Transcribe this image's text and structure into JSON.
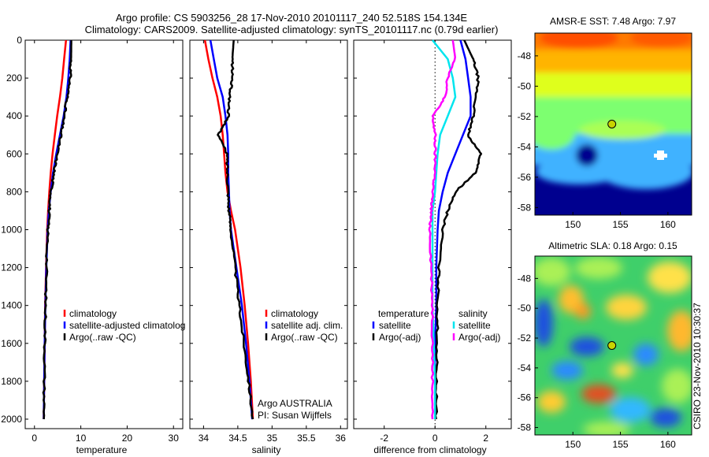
{
  "header": {
    "line1": "Argo profile: CS 5903256_28 17-Nov-2010 20101117_240 52.518S 154.134E",
    "line2": "Climatology: CARS2009. Satellite-adjusted climatology: synTS_20101117.nc (0.79d earlier)"
  },
  "credit": {
    "agency": "Argo AUSTRALIA",
    "pi": "PI: Susan Wijffels",
    "stamp": "CSIRO 23-Nov-2010 10:30:37"
  },
  "colors": {
    "climatology": "#ff0000",
    "satellite": "#0000ff",
    "argo": "#000000",
    "sat_diff": "#00e5ee",
    "argo_adj_diff": "#ff00ff"
  },
  "chart_data": [
    {
      "type": "line",
      "title": "",
      "xlabel": "temperature",
      "ylabel": "",
      "xlim": [
        -2,
        32
      ],
      "ylim": [
        2050,
        0
      ],
      "xticks": [
        0,
        10,
        20,
        30
      ],
      "yticks": [
        0,
        200,
        400,
        600,
        800,
        1000,
        1200,
        1400,
        1600,
        1800,
        2000
      ],
      "legend": {
        "location": "lower-right",
        "entries": [
          "climatology",
          "satellite-adjusted climatolog",
          "Argo(..raw -QC)"
        ]
      },
      "series": [
        {
          "name": "climatology",
          "color": "#ff0000",
          "depth": [
            0,
            100,
            200,
            300,
            400,
            500,
            600,
            700,
            800,
            900,
            1000,
            1200,
            1400,
            1600,
            1800,
            2000
          ],
          "values": [
            6.8,
            6.4,
            6.0,
            5.5,
            4.9,
            4.4,
            3.9,
            3.5,
            3.2,
            2.95,
            2.75,
            2.5,
            2.3,
            2.2,
            2.1,
            2.0
          ]
        },
        {
          "name": "satellite-adjusted climatolog",
          "color": "#0000ff",
          "depth": [
            0,
            100,
            200,
            300,
            400,
            500,
            600,
            700,
            800,
            900,
            1000,
            1200,
            1400,
            1600,
            1800,
            2000
          ],
          "values": [
            7.8,
            7.6,
            7.3,
            6.9,
            6.3,
            5.5,
            4.7,
            4.0,
            3.5,
            3.1,
            2.85,
            2.55,
            2.35,
            2.2,
            2.1,
            2.0
          ]
        },
        {
          "name": "Argo(..raw -QC)",
          "color": "#000000",
          "depth": [
            0,
            100,
            200,
            300,
            400,
            500,
            600,
            700,
            800,
            900,
            1000,
            1200,
            1400,
            1600,
            1800,
            2000
          ],
          "values": [
            7.95,
            7.9,
            7.7,
            7.1,
            6.4,
            5.7,
            4.9,
            4.2,
            3.6,
            3.2,
            2.9,
            2.6,
            2.4,
            2.25,
            2.12,
            2.02
          ]
        }
      ]
    },
    {
      "type": "line",
      "title": "",
      "xlabel": "salinity",
      "ylabel": "",
      "xlim": [
        33.8,
        36.1
      ],
      "ylim": [
        2050,
        0
      ],
      "xticks": [
        34,
        34.5,
        35,
        35.5,
        36
      ],
      "yticks": [
        0,
        200,
        400,
        600,
        800,
        1000,
        1200,
        1400,
        1600,
        1800,
        2000
      ],
      "legend": {
        "location": "lower-right",
        "entries": [
          "climatology",
          "satellite adj. clim.",
          "Argo(..raw -QC)"
        ]
      },
      "series": [
        {
          "name": "climatology",
          "color": "#ff0000",
          "depth": [
            0,
            100,
            200,
            300,
            400,
            500,
            600,
            700,
            800,
            900,
            1000,
            1200,
            1400,
            1600,
            1800,
            2000
          ],
          "values": [
            34.02,
            34.07,
            34.13,
            34.2,
            34.25,
            34.28,
            34.3,
            34.32,
            34.35,
            34.4,
            34.46,
            34.54,
            34.6,
            34.65,
            34.69,
            34.72
          ]
        },
        {
          "name": "satellite adj. clim.",
          "color": "#0000ff",
          "depth": [
            0,
            100,
            200,
            300,
            400,
            500,
            600,
            700,
            800,
            900,
            1000,
            1200,
            1400,
            1600,
            1800,
            2000
          ],
          "values": [
            34.1,
            34.15,
            34.2,
            34.28,
            34.32,
            34.35,
            34.36,
            34.36,
            34.37,
            34.38,
            34.4,
            34.48,
            34.56,
            34.62,
            34.67,
            34.71
          ]
        },
        {
          "name": "Argo(..raw -QC)",
          "color": "#000000",
          "depth": [
            0,
            100,
            200,
            300,
            400,
            500,
            600,
            700,
            800,
            900,
            1000,
            1200,
            1400,
            1600,
            1800,
            2000
          ],
          "values": [
            34.44,
            34.42,
            34.42,
            34.38,
            34.36,
            34.22,
            34.34,
            34.35,
            34.36,
            34.37,
            34.4,
            34.46,
            34.52,
            34.59,
            34.66,
            34.72
          ]
        }
      ]
    },
    {
      "type": "line",
      "title": "",
      "xlabel": "difference from climatology",
      "ylabel": "",
      "xlim": [
        -3.2,
        3.0
      ],
      "ylim": [
        2050,
        0
      ],
      "xticks": [
        -2,
        0,
        2
      ],
      "yticks": [
        0,
        200,
        400,
        600,
        800,
        1000,
        1200,
        1400,
        1600,
        1800,
        2000
      ],
      "legend": {
        "location": "lower-center",
        "groups": [
          {
            "heading": "temperature",
            "entries": [
              "satellite",
              "Argo(-adj)"
            ]
          },
          {
            "heading": "salinity",
            "entries": [
              "satellite",
              "Argo(-adj)"
            ]
          }
        ]
      },
      "series": [
        {
          "name": "temperature satellite",
          "color": "#0000ff",
          "depth": [
            0,
            100,
            200,
            300,
            400,
            500,
            600,
            700,
            800,
            900,
            1000,
            1200,
            1400,
            1600,
            1800,
            2000
          ],
          "values": [
            1.0,
            1.2,
            1.3,
            1.4,
            1.4,
            1.1,
            0.8,
            0.5,
            0.3,
            0.15,
            0.1,
            0.05,
            0.05,
            0.0,
            0.0,
            0.0
          ]
        },
        {
          "name": "temperature Argo(-adj)",
          "color": "#000000",
          "depth": [
            0,
            100,
            200,
            300,
            400,
            500,
            600,
            700,
            800,
            900,
            1000,
            1200,
            1400,
            1600,
            1800,
            2000
          ],
          "values": [
            1.15,
            1.5,
            1.7,
            1.6,
            1.5,
            1.3,
            1.8,
            1.6,
            0.8,
            0.5,
            0.3,
            0.15,
            0.1,
            0.08,
            0.05,
            0.05
          ]
        },
        {
          "name": "salinity satellite",
          "color": "#00e5ee",
          "depth": [
            0,
            100,
            200,
            300,
            400,
            500,
            600,
            700,
            800,
            900,
            1000,
            1200,
            1400,
            1600,
            1800,
            2000
          ],
          "values": [
            -0.1,
            0.5,
            0.7,
            0.8,
            0.5,
            0.2,
            0.1,
            0.05,
            0.0,
            -0.1,
            -0.1,
            -0.1,
            -0.1,
            -0.05,
            0.0,
            0.0
          ]
        },
        {
          "name": "salinity Argo(-adj)",
          "color": "#ff00ff",
          "depth": [
            0,
            100,
            200,
            300,
            400,
            500,
            600,
            700,
            800,
            900,
            1000,
            1200,
            1400,
            1600,
            1800,
            2000
          ],
          "values": [
            0.7,
            0.8,
            0.5,
            0.4,
            -0.1,
            0.0,
            0.0,
            0.0,
            -0.1,
            -0.15,
            -0.2,
            -0.15,
            -0.1,
            -0.1,
            -0.1,
            -0.1
          ]
        }
      ]
    },
    {
      "type": "heatmap",
      "title": "AMSR-E SST: 7.48 Argo: 7.97",
      "xlim": [
        146,
        162.5
      ],
      "ylim": [
        -58.5,
        -46.5
      ],
      "xticks": [
        150,
        155,
        160
      ],
      "yticks": [
        -48,
        -50,
        -52,
        -54,
        -56,
        -58
      ],
      "marker": {
        "lon": 154.1,
        "lat": -52.5
      }
    },
    {
      "type": "heatmap",
      "title": "Altimetric SLA: 0.18 Argo: 0.15",
      "xlim": [
        146,
        162.5
      ],
      "ylim": [
        -58.5,
        -46.5
      ],
      "xticks": [
        150,
        155,
        160
      ],
      "yticks": [
        -48,
        -50,
        -52,
        -54,
        -56,
        -58
      ],
      "marker": {
        "lon": 154.1,
        "lat": -52.5
      }
    }
  ]
}
